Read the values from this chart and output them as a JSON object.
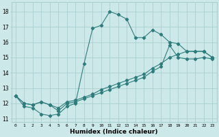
{
  "xlabel": "Humidex (Indice chaleur)",
  "bg_color": "#cce8e8",
  "grid_color": "#aacfcf",
  "line_color": "#2e7d7d",
  "xlim": [
    -0.5,
    23.5
  ],
  "ylim": [
    10.8,
    18.6
  ],
  "yticks": [
    11,
    12,
    13,
    14,
    15,
    16,
    17,
    18
  ],
  "xticks": [
    0,
    1,
    2,
    3,
    4,
    5,
    6,
    7,
    8,
    9,
    10,
    11,
    12,
    13,
    14,
    15,
    16,
    17,
    18,
    19,
    20,
    21,
    22,
    23
  ],
  "line1_x": [
    0,
    1,
    2,
    3,
    4,
    5,
    6,
    7,
    8,
    9,
    10,
    11,
    12,
    13,
    14,
    15,
    16,
    17,
    18,
    19,
    20,
    21,
    22,
    23
  ],
  "line1_y": [
    12.5,
    11.8,
    11.7,
    11.3,
    11.2,
    11.3,
    11.8,
    12.0,
    14.6,
    16.9,
    17.1,
    18.0,
    17.8,
    17.5,
    16.3,
    16.3,
    16.8,
    16.5,
    16.0,
    15.9,
    15.4,
    15.4,
    15.4,
    15.0
  ],
  "line2_x": [
    0,
    1,
    2,
    3,
    4,
    5,
    6,
    7,
    8,
    9,
    10,
    11,
    12,
    13,
    14,
    15,
    16,
    17,
    18,
    19,
    20,
    21,
    22,
    23
  ],
  "line2_y": [
    12.5,
    12.0,
    11.9,
    12.1,
    11.9,
    11.7,
    12.1,
    12.2,
    12.4,
    12.6,
    12.9,
    13.1,
    13.3,
    13.5,
    13.7,
    13.9,
    14.3,
    14.6,
    15.0,
    15.2,
    15.4,
    15.4,
    15.4,
    15.0
  ],
  "line3_x": [
    0,
    1,
    2,
    3,
    4,
    5,
    6,
    7,
    8,
    9,
    10,
    11,
    12,
    13,
    14,
    15,
    16,
    17,
    18,
    19,
    20,
    21,
    22,
    23
  ],
  "line3_y": [
    12.5,
    12.0,
    11.9,
    12.1,
    11.9,
    11.5,
    12.0,
    12.1,
    12.3,
    12.5,
    12.7,
    12.9,
    13.1,
    13.3,
    13.5,
    13.7,
    14.1,
    14.4,
    15.8,
    15.0,
    14.9,
    14.9,
    15.0,
    14.9
  ]
}
